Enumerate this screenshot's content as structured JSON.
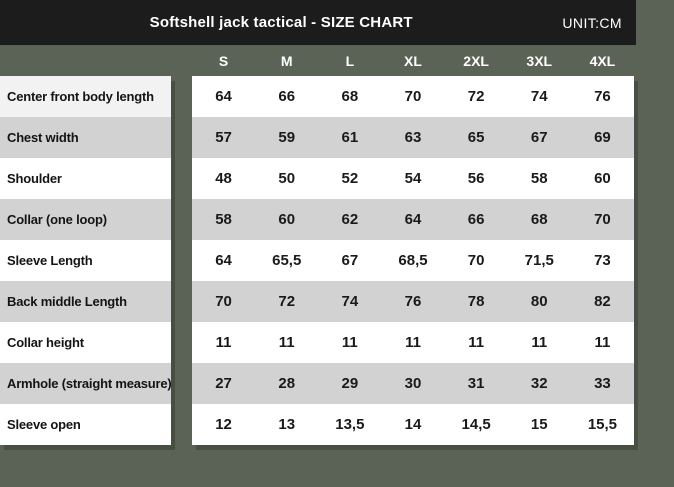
{
  "chart_data": {
    "type": "table",
    "title": "Softshell jack tactical - SIZE CHART",
    "unit_label": "UNIT:CM",
    "columns": [
      "S",
      "M",
      "L",
      "XL",
      "2XL",
      "3XL",
      "4XL"
    ],
    "rows": [
      {
        "label": "Center front body length",
        "values": [
          "64",
          "66",
          "68",
          "70",
          "72",
          "74",
          "76"
        ]
      },
      {
        "label": "Chest width",
        "values": [
          "57",
          "59",
          "61",
          "63",
          "65",
          "67",
          "69"
        ]
      },
      {
        "label": "Shoulder",
        "values": [
          "48",
          "50",
          "52",
          "54",
          "56",
          "58",
          "60"
        ]
      },
      {
        "label": "Collar (one loop)",
        "values": [
          "58",
          "60",
          "62",
          "64",
          "66",
          "68",
          "70"
        ]
      },
      {
        "label": "Sleeve Length",
        "values": [
          "64",
          "65,5",
          "67",
          "68,5",
          "70",
          "71,5",
          "73"
        ]
      },
      {
        "label": "Back middle Length",
        "values": [
          "70",
          "72",
          "74",
          "76",
          "78",
          "80",
          "82"
        ]
      },
      {
        "label": "Collar height",
        "values": [
          "11",
          "11",
          "11",
          "11",
          "11",
          "11",
          "11"
        ]
      },
      {
        "label": "Armhole (straight measure)",
        "values": [
          "27",
          "28",
          "29",
          "30",
          "31",
          "32",
          "33"
        ]
      },
      {
        "label": "Sleeve open",
        "values": [
          "12",
          "13",
          "13,5",
          "14",
          "14,5",
          "15",
          "15,5"
        ]
      }
    ]
  },
  "colors": {
    "background_green": "#5a6355",
    "title_bar_black": "#1c1c1c",
    "stripe_gray": "#d2d2d2",
    "first_label_row": "#f2f2f2",
    "cell_white": "#ffffff",
    "text_white": "#ffffff",
    "text_black": "#1a1a1a"
  }
}
